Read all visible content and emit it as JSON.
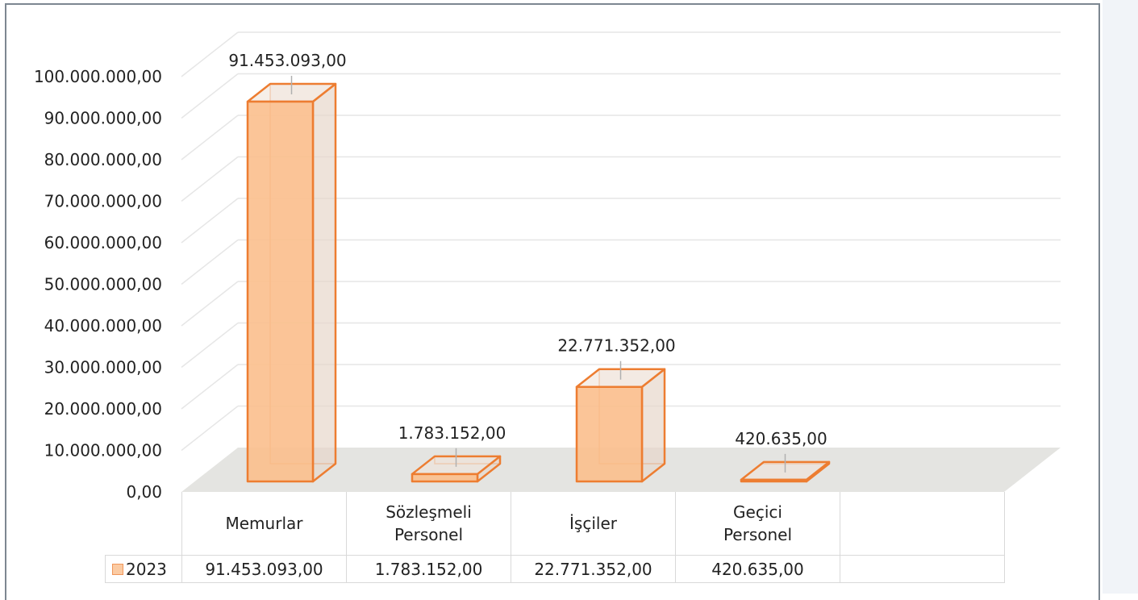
{
  "chart_data": {
    "type": "bar3d",
    "categories": [
      "Memurlar",
      "Sözleşmeli\nPersonel",
      "İşçiler",
      "Geçici\nPersonel"
    ],
    "series": [
      {
        "name": "2023",
        "color": "#ed7d31",
        "fill": "#fbbf8d",
        "values": [
          91453093,
          1783152,
          22771352,
          420635
        ],
        "value_labels": [
          "91.453.093,00",
          "1.783.152,00",
          "22.771.352,00",
          "420.635,00"
        ]
      }
    ],
    "ylim": [
      0,
      100000000
    ],
    "yticks": [
      {
        "value": 0,
        "label": "0,00"
      },
      {
        "value": 10000000,
        "label": "10.000.000,00"
      },
      {
        "value": 20000000,
        "label": "20.000.000,00"
      },
      {
        "value": 30000000,
        "label": "30.000.000,00"
      },
      {
        "value": 40000000,
        "label": "40.000.000,00"
      },
      {
        "value": 50000000,
        "label": "50.000.000,00"
      },
      {
        "value": 60000000,
        "label": "60.000.000,00"
      },
      {
        "value": 70000000,
        "label": "70.000.000,00"
      },
      {
        "value": 80000000,
        "label": "80.000.000,00"
      },
      {
        "value": 90000000,
        "label": "90.000.000,00"
      },
      {
        "value": 100000000,
        "label": "100.000.000,00"
      }
    ],
    "grid": true,
    "data_table": true
  }
}
